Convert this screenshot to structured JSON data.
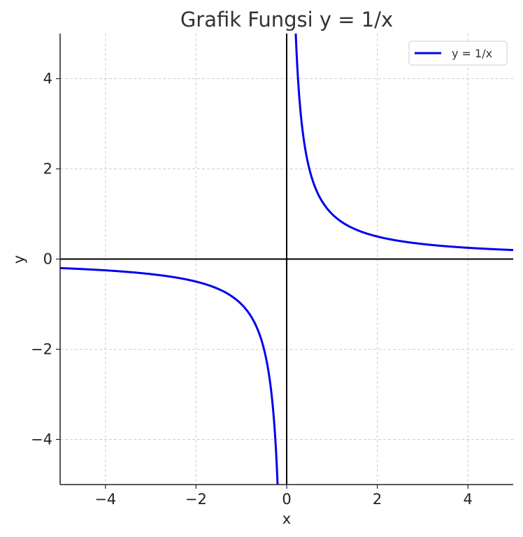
{
  "chart_data": {
    "type": "line",
    "title": "Grafik Fungsi y = 1/x",
    "xlabel": "x",
    "ylabel": "y",
    "xlim": [
      -5,
      5
    ],
    "ylim": [
      -5,
      5
    ],
    "xticks": [
      -4,
      -2,
      0,
      2,
      4
    ],
    "yticks": [
      -4,
      -2,
      0,
      2,
      4
    ],
    "xtick_labels": [
      "−4",
      "−2",
      "0",
      "2",
      "4"
    ],
    "ytick_labels": [
      "−4",
      "−2",
      "0",
      "2",
      "4"
    ],
    "grid": true,
    "legend_position": "top-right",
    "series": [
      {
        "name": "y = 1/x",
        "color": "#0000ee",
        "segments": [
          {
            "x": [
              -5,
              -4,
              -3,
              -2,
              -1.5,
              -1,
              -0.8,
              -0.6,
              -0.5,
              -0.4,
              -0.3,
              -0.25,
              -0.2
            ],
            "y": [
              -0.2,
              -0.25,
              -0.333,
              -0.5,
              -0.667,
              -1,
              -1.25,
              -1.667,
              -2,
              -2.5,
              -3.333,
              -4,
              -5
            ]
          },
          {
            "x": [
              0.2,
              0.25,
              0.3,
              0.4,
              0.5,
              0.6,
              0.8,
              1,
              1.5,
              2,
              3,
              4,
              5
            ],
            "y": [
              5,
              4,
              3.333,
              2.5,
              2,
              1.667,
              1.25,
              1,
              0.667,
              0.5,
              0.333,
              0.25,
              0.2
            ]
          }
        ]
      }
    ],
    "reference_lines": {
      "horizontal_y": 0,
      "vertical_x": 0,
      "color": "#000000"
    }
  }
}
